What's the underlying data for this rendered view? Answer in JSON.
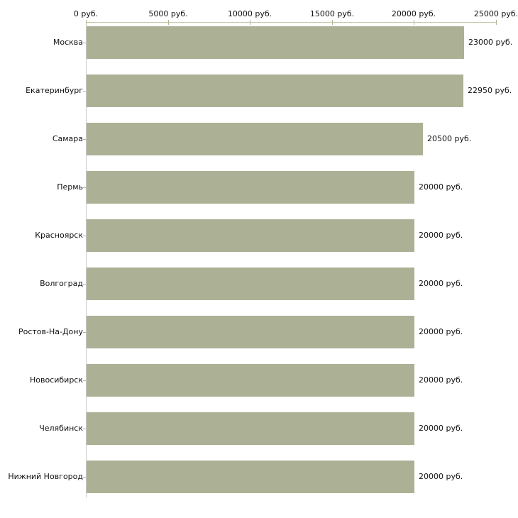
{
  "chart_data": {
    "type": "bar",
    "orientation": "horizontal",
    "title": "",
    "xlabel": "",
    "ylabel": "",
    "unit": "руб.",
    "xlim": [
      0,
      25000
    ],
    "grid": false,
    "legend": false,
    "categories": [
      "Москва",
      "Екатеринбург",
      "Самара",
      "Пермь",
      "Красноярск",
      "Волгоград",
      "Ростов-На-Дону",
      "Новосибирск",
      "Челябинск",
      "Нижний Новгород"
    ],
    "values": [
      23000,
      22950,
      20500,
      20000,
      20000,
      20000,
      20000,
      20000,
      20000,
      20000
    ],
    "value_labels": [
      "23000 руб.",
      "22950 руб.",
      "20500 руб.",
      "20000 руб.",
      "20000 руб.",
      "20000 руб.",
      "20000 руб.",
      "20000 руб.",
      "20000 руб.",
      "20000 руб."
    ],
    "x_ticks": [
      {
        "value": 0,
        "label": "0 руб."
      },
      {
        "value": 5000,
        "label": "5000 руб."
      },
      {
        "value": 10000,
        "label": "10000 руб."
      },
      {
        "value": 15000,
        "label": "15000 руб."
      },
      {
        "value": 20000,
        "label": "20000 руб."
      },
      {
        "value": 25000,
        "label": "25000 руб."
      }
    ],
    "colors": {
      "bar": "#acb195",
      "top_axis": "#c6c8ab",
      "left_axis": "#c8c8c8",
      "tick": "#b2b591",
      "text": "#111111",
      "background": "#ffffff"
    }
  }
}
